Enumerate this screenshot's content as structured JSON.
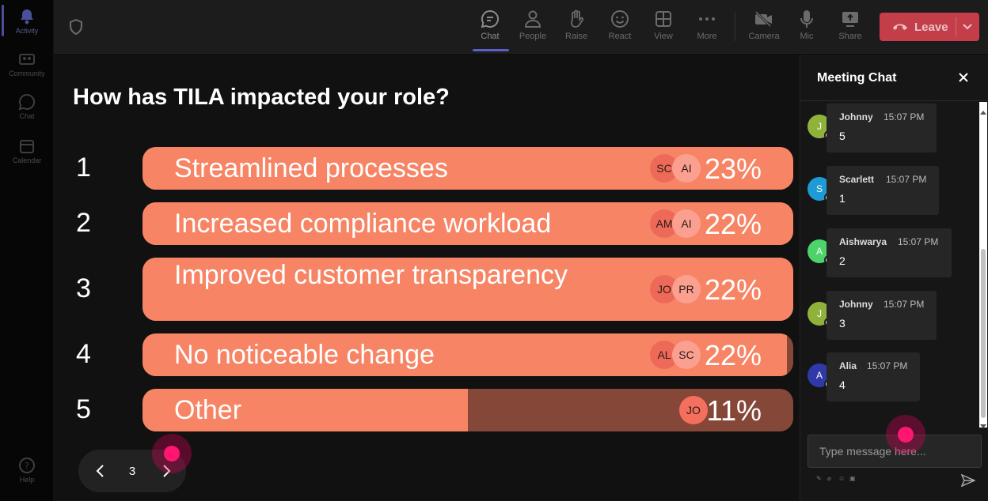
{
  "rail": {
    "items": [
      {
        "label": "Activity",
        "icon": "bell-icon",
        "active": true
      },
      {
        "label": "Community",
        "icon": "community-icon"
      },
      {
        "label": "Chat",
        "icon": "chat-icon"
      },
      {
        "label": "Calendar",
        "icon": "calendar-icon"
      }
    ],
    "help": {
      "label": "Help",
      "icon": "help-icon"
    }
  },
  "toolbar": {
    "buttons": [
      {
        "label": "Chat",
        "icon": "chat-icon",
        "active": true
      },
      {
        "label": "People",
        "icon": "people-icon"
      },
      {
        "label": "Raise",
        "icon": "hand-icon"
      },
      {
        "label": "React",
        "icon": "smiley-icon"
      },
      {
        "label": "View",
        "icon": "grid-icon"
      },
      {
        "label": "More",
        "icon": "more-icon"
      },
      {
        "label": "Camera",
        "icon": "camera-off-icon"
      },
      {
        "label": "Mic",
        "icon": "mic-icon"
      },
      {
        "label": "Share",
        "icon": "share-icon"
      }
    ],
    "leave_label": "Leave"
  },
  "poll": {
    "question": "How has TILA impacted your role?",
    "options": [
      {
        "number": "1",
        "label": "Streamlined processes",
        "percent_label": "23%",
        "fill": 1.0,
        "avatars": [
          "SC",
          "AI"
        ]
      },
      {
        "number": "2",
        "label": "Increased compliance workload",
        "percent_label": "22%",
        "fill": 1.0,
        "avatars": [
          "AM",
          "AI"
        ]
      },
      {
        "number": "3",
        "label": "Improved customer transparency",
        "percent_label": "22%",
        "fill": 1.0,
        "avatars": [
          "JO",
          "PR"
        ]
      },
      {
        "number": "4",
        "label": "No noticeable change",
        "percent_label": "22%",
        "fill": 0.99,
        "avatars": [
          "AL",
          "SC"
        ]
      },
      {
        "number": "5",
        "label": "Other",
        "percent_label": "11%",
        "fill": 0.5,
        "avatars": [
          "JO"
        ]
      }
    ]
  },
  "pager": {
    "page": "3"
  },
  "chat": {
    "title": "Meeting Chat",
    "messages": [
      {
        "initial": "J",
        "name": "Johnny",
        "time": "15:07 PM",
        "text": "5",
        "color": "#8fb33a"
      },
      {
        "initial": "S",
        "name": "Scarlett",
        "time": "15:07 PM",
        "text": "1",
        "color": "#1e9bd7"
      },
      {
        "initial": "A",
        "name": "Aishwarya",
        "time": "15:07 PM",
        "text": "2",
        "color": "#4cd36a"
      },
      {
        "initial": "J",
        "name": "Johnny",
        "time": "15:07 PM",
        "text": "3",
        "color": "#8fb33a"
      },
      {
        "initial": "A",
        "name": "Alia",
        "time": "15:07 PM",
        "text": "4",
        "color": "#2f3aa8"
      }
    ],
    "placeholder": "Type message here..."
  },
  "colors": {
    "bar_fill": "#f78464",
    "bar_track": "#854838",
    "leave": "#c43e4a",
    "accent": "#5b5fc7"
  }
}
